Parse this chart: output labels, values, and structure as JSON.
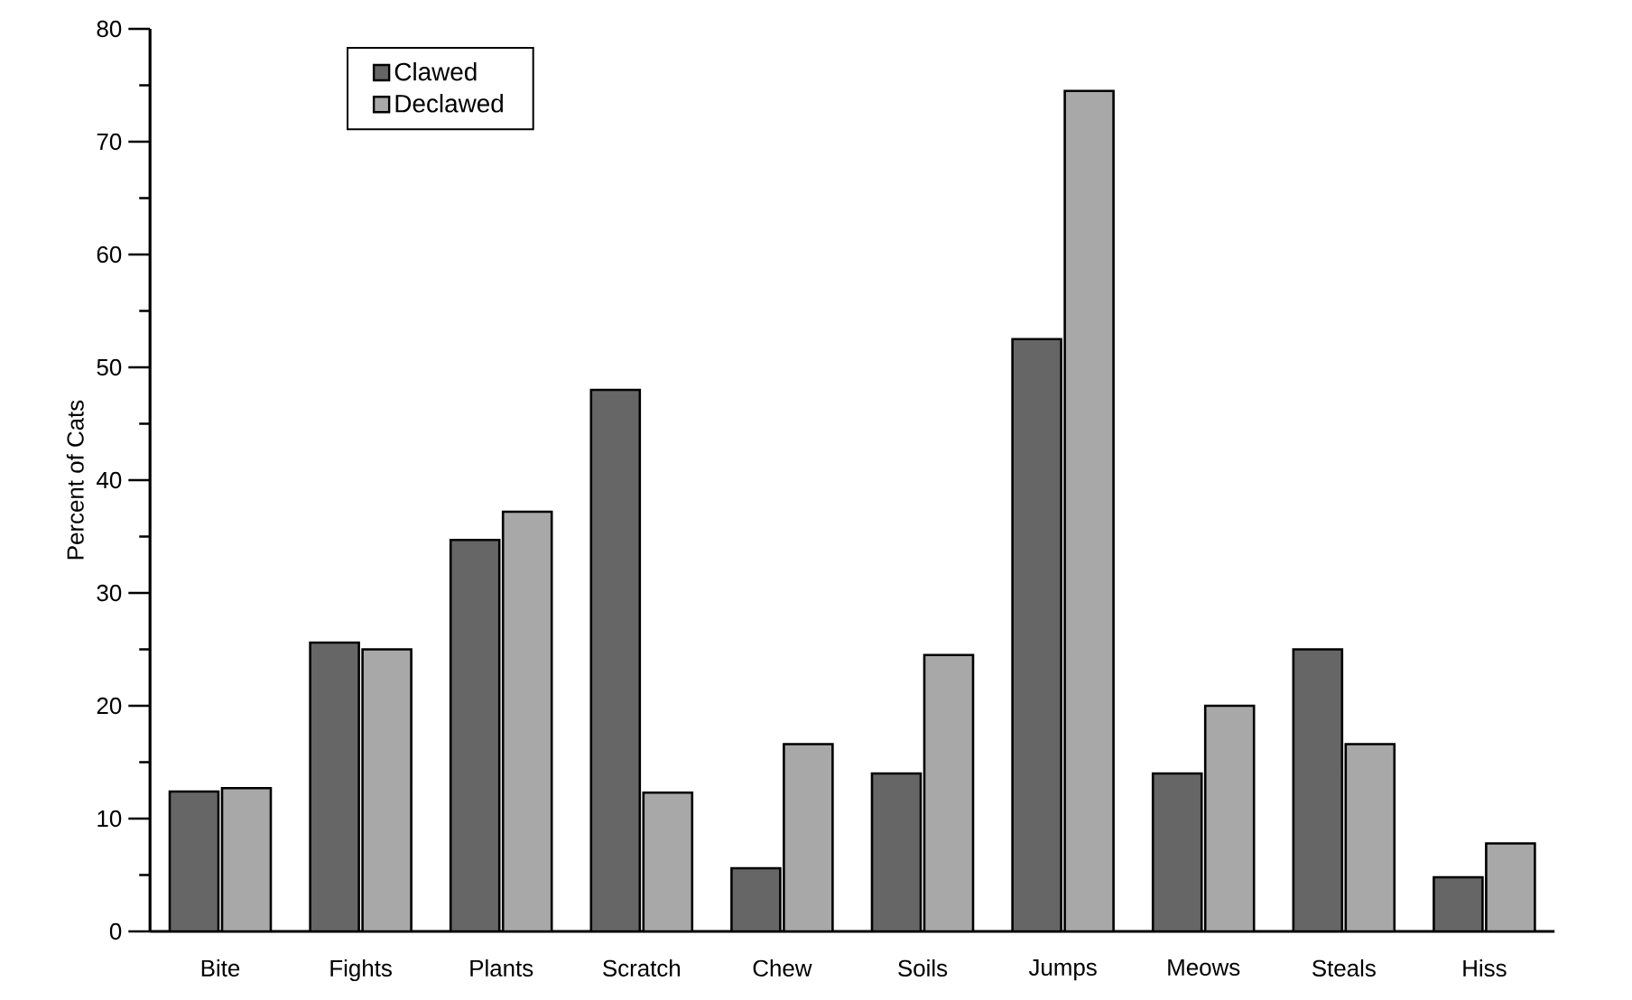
{
  "chart_data": {
    "type": "bar",
    "ylabel": "Percent of Cats",
    "categories": [
      "Bite",
      "Fights",
      "Plants",
      "Scratch",
      "Chew",
      "Soils",
      "Jumps",
      "Meows",
      "Steals",
      "Hiss"
    ],
    "series": [
      {
        "name": "Clawed",
        "color": "#666666",
        "values": [
          12.4,
          25.6,
          34.7,
          48.0,
          5.6,
          14.0,
          52.5,
          14.0,
          25.0,
          4.8
        ]
      },
      {
        "name": "Declawed",
        "color": "#a8a8a8",
        "values": [
          12.7,
          25.0,
          37.2,
          12.3,
          16.6,
          24.5,
          74.5,
          20.0,
          16.6,
          7.8
        ]
      }
    ],
    "ylim": [
      0,
      80
    ],
    "yticks": [
      0,
      10,
      20,
      30,
      40,
      50,
      60,
      70,
      80
    ],
    "grid": false,
    "legend": "top left"
  }
}
